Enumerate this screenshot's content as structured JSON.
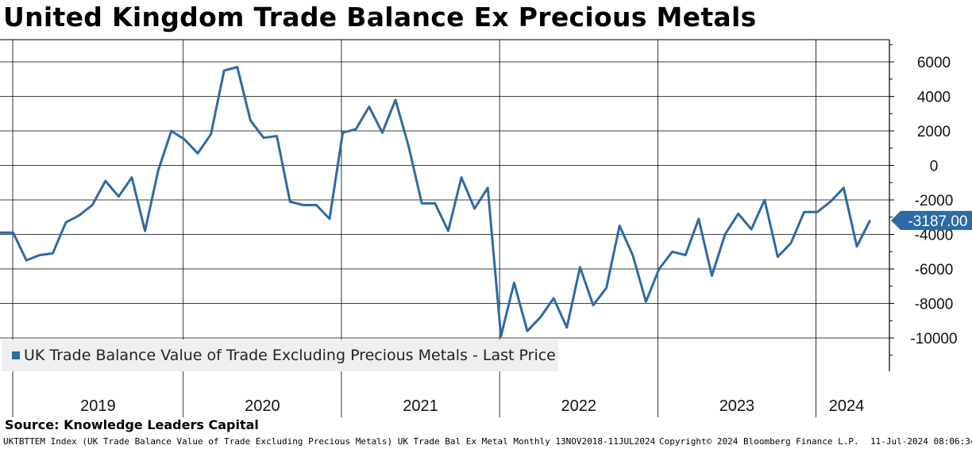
{
  "header": {
    "title": "United Kingdom Trade Balance Ex Precious Metals"
  },
  "legend": {
    "label": "UK Trade Balance Value of Trade Excluding Precious Metals - Last Price"
  },
  "source": "Source: Knowledge Leaders Capital",
  "footer": {
    "description": "UKTBTTEM Index (UK Trade Balance Value  of Trade Excluding Precious Metals) UK Trade Bal Ex Metal  Monthly 13NOV2018-11JUL2024",
    "copyright": "Copyright© 2024 Bloomberg Finance L.P.",
    "timestamp": "11-Jul-2024 08:06:34"
  },
  "colors": {
    "line": "#2e6aa4",
    "grid": "#000000",
    "last_badge": "#2e6aa4"
  },
  "chart_data": {
    "type": "line",
    "title": "United Kingdom Trade Balance Ex Precious Metals",
    "xlabel": "",
    "ylabel": "",
    "x_start": "2018-11",
    "x_end": "2024-05",
    "ylim": [
      -12000,
      7000
    ],
    "yticks": [
      6000,
      4000,
      2000,
      0,
      -2000,
      -4000,
      -6000,
      -8000,
      -10000
    ],
    "ytick_labels": [
      "6000",
      "4000",
      "2000",
      "0",
      "-2000",
      "-4000",
      "-6000",
      "-8000",
      "-10000"
    ],
    "years": [
      "2019",
      "2020",
      "2021",
      "2022",
      "2023",
      "2024"
    ],
    "grid": true,
    "last_value_label": "-3187.00",
    "series": [
      {
        "name": "UK Trade Balance Value of Trade Excluding Precious Metals - Last Price",
        "values": [
          -3900,
          -3900,
          -5500,
          -5200,
          -5100,
          -3300,
          -2900,
          -2300,
          -900,
          -1800,
          -700,
          -3800,
          -300,
          2000,
          1500,
          700,
          1800,
          5500,
          5700,
          2600,
          1600,
          1700,
          -2100,
          -2300,
          -2300,
          -3100,
          1900,
          2100,
          3400,
          1900,
          3800,
          1100,
          -2200,
          -2200,
          -3800,
          -700,
          -2500,
          -1300,
          -9900,
          -6800,
          -9600,
          -8800,
          -7700,
          -9400,
          -5900,
          -8100,
          -7100,
          -3500,
          -5200,
          -7900,
          -6000,
          -5000,
          -5200,
          -3100,
          -6400,
          -4000,
          -2800,
          -3700,
          -2000,
          -5300,
          -4500,
          -2700,
          -2700,
          -2100,
          -1300,
          -4700,
          -3187
        ]
      }
    ]
  }
}
